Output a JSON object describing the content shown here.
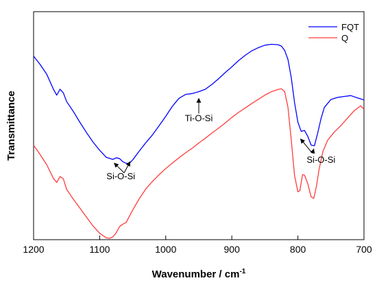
{
  "chart_data": {
    "type": "line",
    "xlabel": "Wavenumber / cm",
    "xlabel_sup": "-1",
    "ylabel": "Transmittance",
    "xlim": [
      1200,
      700
    ],
    "ylim": [
      0,
      100
    ],
    "x_reversed": true,
    "xticks": [
      1200,
      1100,
      1000,
      900,
      800,
      700
    ],
    "yticks_shown": false,
    "legend_position": "top-right",
    "series": [
      {
        "name": "FQT",
        "color": "#0000ff",
        "points": [
          [
            1200,
            80.5
          ],
          [
            1190,
            76.8
          ],
          [
            1180,
            72.5
          ],
          [
            1170,
            66.0
          ],
          [
            1165,
            63.4
          ],
          [
            1160,
            66.0
          ],
          [
            1155,
            64.4
          ],
          [
            1150,
            60.6
          ],
          [
            1140,
            56.3
          ],
          [
            1130,
            51.5
          ],
          [
            1120,
            47.0
          ],
          [
            1110,
            42.8
          ],
          [
            1100,
            39.2
          ],
          [
            1090,
            36.1
          ],
          [
            1080,
            35.2
          ],
          [
            1075,
            35.9
          ],
          [
            1070,
            35.6
          ],
          [
            1065,
            34.2
          ],
          [
            1060,
            33.5
          ],
          [
            1055,
            33.5
          ],
          [
            1050,
            35.0
          ],
          [
            1040,
            38.9
          ],
          [
            1030,
            42.6
          ],
          [
            1020,
            46.0
          ],
          [
            1010,
            50.0
          ],
          [
            1000,
            54.1
          ],
          [
            990,
            58.5
          ],
          [
            980,
            62.0
          ],
          [
            970,
            63.7
          ],
          [
            960,
            64.1
          ],
          [
            950,
            64.9
          ],
          [
            940,
            66.0
          ],
          [
            930,
            68.1
          ],
          [
            920,
            70.6
          ],
          [
            910,
            73.3
          ],
          [
            900,
            75.8
          ],
          [
            890,
            78.5
          ],
          [
            880,
            80.8
          ],
          [
            870,
            82.8
          ],
          [
            860,
            84.2
          ],
          [
            850,
            85.3
          ],
          [
            840,
            85.7
          ],
          [
            830,
            85.5
          ],
          [
            825,
            84.9
          ],
          [
            820,
            83.0
          ],
          [
            815,
            79.0
          ],
          [
            810,
            71.0
          ],
          [
            805,
            60.0
          ],
          [
            800,
            51.5
          ],
          [
            795,
            47.5
          ],
          [
            790,
            47.9
          ],
          [
            785,
            45.3
          ],
          [
            780,
            41.5
          ],
          [
            775,
            41.2
          ],
          [
            770,
            46.8
          ],
          [
            765,
            53.1
          ],
          [
            760,
            58.0
          ],
          [
            750,
            61.5
          ],
          [
            740,
            62.4
          ],
          [
            730,
            62.8
          ],
          [
            720,
            63.2
          ],
          [
            710,
            62.2
          ],
          [
            700,
            61.3
          ]
        ]
      },
      {
        "name": "Q",
        "color": "#ff3b3b",
        "points": [
          [
            1200,
            41.4
          ],
          [
            1190,
            37.3
          ],
          [
            1180,
            32.8
          ],
          [
            1170,
            26.9
          ],
          [
            1165,
            25.1
          ],
          [
            1160,
            27.7
          ],
          [
            1155,
            26.7
          ],
          [
            1150,
            22.1
          ],
          [
            1140,
            17.8
          ],
          [
            1130,
            13.9
          ],
          [
            1120,
            9.9
          ],
          [
            1110,
            6.0
          ],
          [
            1100,
            2.8
          ],
          [
            1090,
            0.8
          ],
          [
            1085,
            0.6
          ],
          [
            1080,
            1.2
          ],
          [
            1075,
            3.0
          ],
          [
            1070,
            5.7
          ],
          [
            1065,
            6.8
          ],
          [
            1060,
            7.5
          ],
          [
            1055,
            10.3
          ],
          [
            1050,
            13.0
          ],
          [
            1040,
            18.0
          ],
          [
            1030,
            22.3
          ],
          [
            1020,
            25.6
          ],
          [
            1010,
            28.5
          ],
          [
            1000,
            31.2
          ],
          [
            990,
            33.6
          ],
          [
            980,
            35.9
          ],
          [
            970,
            38.1
          ],
          [
            960,
            40.1
          ],
          [
            950,
            42.4
          ],
          [
            940,
            44.5
          ],
          [
            930,
            46.8
          ],
          [
            920,
            48.9
          ],
          [
            910,
            51.2
          ],
          [
            900,
            53.6
          ],
          [
            890,
            55.8
          ],
          [
            880,
            57.7
          ],
          [
            870,
            59.7
          ],
          [
            860,
            61.5
          ],
          [
            850,
            63.4
          ],
          [
            840,
            64.9
          ],
          [
            830,
            65.9
          ],
          [
            825,
            66.2
          ],
          [
            820,
            64.9
          ],
          [
            815,
            58.0
          ],
          [
            810,
            43.5
          ],
          [
            805,
            28.0
          ],
          [
            800,
            21.0
          ],
          [
            797,
            21.5
          ],
          [
            793,
            28.5
          ],
          [
            790,
            28.3
          ],
          [
            785,
            24.5
          ],
          [
            780,
            18.8
          ],
          [
            776,
            18.1
          ],
          [
            772,
            23.3
          ],
          [
            768,
            30.8
          ],
          [
            762,
            38.8
          ],
          [
            755,
            43.6
          ],
          [
            745,
            47.2
          ],
          [
            735,
            50.0
          ],
          [
            725,
            53.3
          ],
          [
            715,
            56.5
          ],
          [
            705,
            58.7
          ],
          [
            700,
            57.2
          ]
        ]
      }
    ],
    "annotations": [
      {
        "text": "Ti-O-Si",
        "label_at": [
          950,
          52.0
        ],
        "arrows": [
          {
            "from": [
              950,
              55.3
            ],
            "to": [
              950,
              62.0
            ]
          }
        ]
      },
      {
        "text": "Si-O-Si",
        "label_at": [
          1068,
          26.5
        ],
        "arrows": [
          {
            "from": [
              1063,
              29.3
            ],
            "to": [
              1078,
              33.6
            ]
          },
          {
            "from": [
              1063,
              29.3
            ],
            "to": [
              1054,
              34.2
            ]
          }
        ]
      },
      {
        "text": "Si-O-Si",
        "label_at": [
          765,
          33.8
        ],
        "arrows": [
          {
            "from": [
              778,
              37.9
            ],
            "to": [
              796,
              44.2
            ]
          },
          {
            "from": [
              778,
              37.9
            ],
            "to": [
              776,
              39.8
            ]
          }
        ]
      }
    ]
  }
}
